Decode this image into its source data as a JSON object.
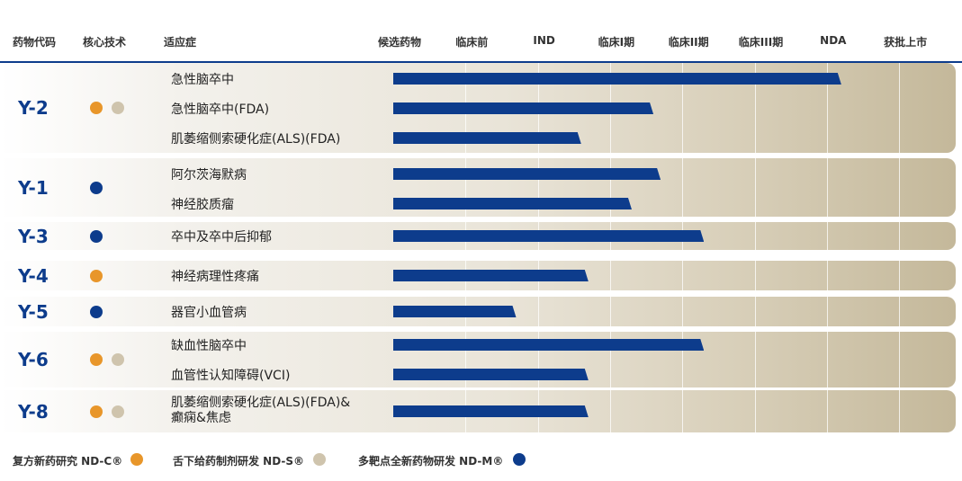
{
  "header": {
    "col_code": "药物代码",
    "col_tech": "核心技术",
    "col_indication": "适应症",
    "stages": [
      "候选药物",
      "临床前",
      "IND",
      "临床I期",
      "临床II期",
      "临床III期",
      "NDA",
      "获批上市"
    ]
  },
  "colors": {
    "bar": "#0d3c8c",
    "code_text": "#0d3c8c",
    "ND-C": "#e8962a",
    "ND-S": "#cfc4ad",
    "ND-M": "#0d3c8c"
  },
  "chart_data": {
    "type": "bar",
    "orientation": "horizontal",
    "stages": [
      "候选药物",
      "临床前",
      "IND",
      "临床I期",
      "临床II期",
      "临床III期",
      "NDA",
      "获批上市"
    ],
    "drugs": [
      {
        "code": "Y-2",
        "tech": [
          "ND-C",
          "ND-S"
        ],
        "indications": [
          {
            "name": "急性脑卒中",
            "progress": 6.2
          },
          {
            "name": "急性脑卒中(FDA)",
            "progress": 3.6
          },
          {
            "name": "肌萎缩侧索硬化症(ALS)(FDA)",
            "progress": 2.6
          }
        ]
      },
      {
        "code": "Y-1",
        "tech": [
          "ND-M"
        ],
        "indications": [
          {
            "name": "阿尔茨海默病",
            "progress": 3.7
          },
          {
            "name": "神经胶质瘤",
            "progress": 3.3
          }
        ]
      },
      {
        "code": "Y-3",
        "tech": [
          "ND-M"
        ],
        "indications": [
          {
            "name": "卒中及卒中后抑郁",
            "progress": 4.3
          }
        ]
      },
      {
        "code": "Y-4",
        "tech": [
          "ND-C"
        ],
        "indications": [
          {
            "name": "神经病理性疼痛",
            "progress": 2.7
          }
        ]
      },
      {
        "code": "Y-5",
        "tech": [
          "ND-M"
        ],
        "indications": [
          {
            "name": "器官小血管病",
            "progress": 1.7
          }
        ]
      },
      {
        "code": "Y-6",
        "tech": [
          "ND-C",
          "ND-S"
        ],
        "indications": [
          {
            "name": "缺血性脑卒中",
            "progress": 4.3
          },
          {
            "name": "血管性认知障碍(VCI)",
            "progress": 2.7
          }
        ]
      },
      {
        "code": "Y-8",
        "tech": [
          "ND-C",
          "ND-S"
        ],
        "indications": [
          {
            "name": "肌萎缩侧索硬化症(ALS)(FDA)&\n癫痫&焦虑",
            "progress": 2.7
          }
        ]
      }
    ],
    "grid": true
  },
  "legend": [
    {
      "label": "复方新药研究 ND-C®",
      "tech": "ND-C"
    },
    {
      "label": "舌下给药制剂研发 ND-S®",
      "tech": "ND-S"
    },
    {
      "label": "多靶点全新药物研发 ND-M®",
      "tech": "ND-M"
    }
  ]
}
